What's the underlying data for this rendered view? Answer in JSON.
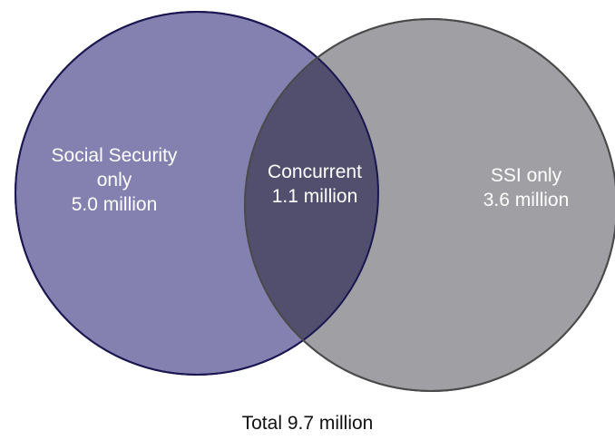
{
  "diagram": {
    "type": "venn",
    "sets": [
      {
        "id": "social-security",
        "label_lines": [
          "Social Security",
          "only",
          "5.0 million"
        ],
        "value_millions": 5.0,
        "color": "#8480b0"
      },
      {
        "id": "ssi",
        "label_lines": [
          "SSI only",
          "3.6 million"
        ],
        "value_millions": 3.6,
        "color": "#a0a0a4"
      }
    ],
    "intersection": {
      "id": "concurrent",
      "label_lines": [
        "Concurrent",
        "1.1 million"
      ],
      "value_millions": 1.1,
      "color": "#524e6e"
    },
    "total_label": "Total 9.7 million",
    "total_millions": 9.7
  }
}
